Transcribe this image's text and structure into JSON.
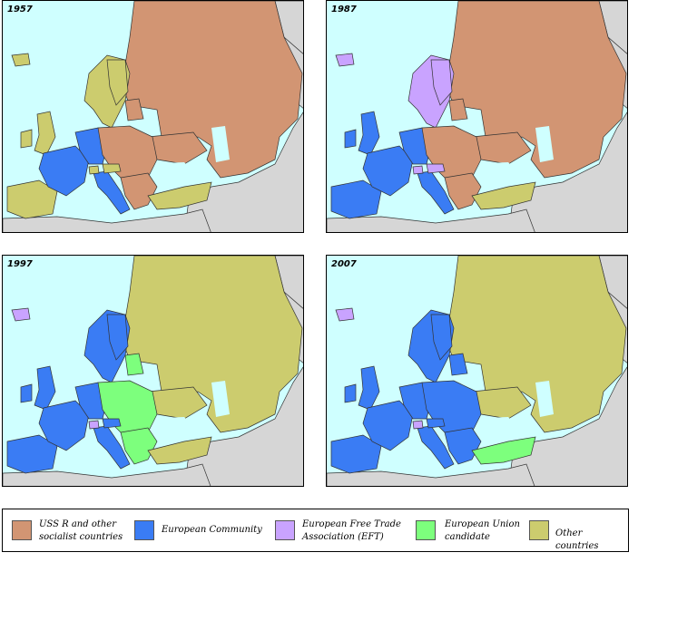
{
  "colors": {
    "sea": "#cfffff",
    "ussr": "#d29573",
    "ec": "#3a7cf4",
    "efta": "#c9a3ff",
    "candidate": "#7dff7d",
    "other": "#cccc6e",
    "outside": "#d6d6d6",
    "border": "#333333"
  },
  "maps": [
    {
      "year": "1957"
    },
    {
      "year": "1987"
    },
    {
      "year": "1997"
    },
    {
      "year": "2007"
    }
  ],
  "legend": [
    {
      "label": "USS R and other\nsocialist countries",
      "color": "#d29573"
    },
    {
      "label": "European Community",
      "color": "#3a7cf4"
    },
    {
      "label": "European Free Trade\nAssociation (EFT)",
      "color": "#c9a3ff"
    },
    {
      "label": "European Union\ncandidate",
      "color": "#7dff7d"
    },
    {
      "label": "Other countries",
      "color": "#cccc6e"
    }
  ]
}
